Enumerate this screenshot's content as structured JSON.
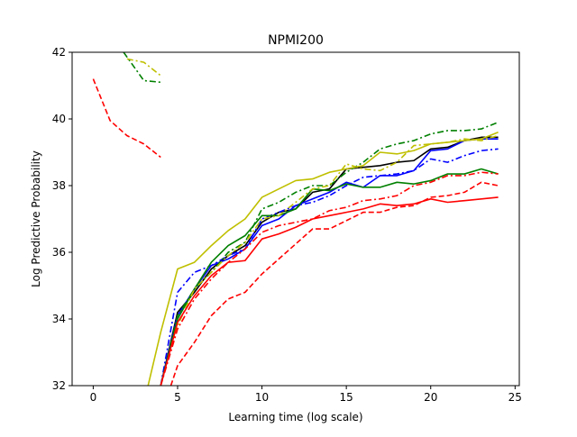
{
  "chart_data": {
    "type": "line",
    "title": "NPMI200",
    "xlabel": "Learning time (log scale)",
    "ylabel": "Log Predictive Probability",
    "xlim": [
      -1.25,
      25.25
    ],
    "ylim": [
      32,
      42
    ],
    "xticks": [
      0,
      5,
      10,
      15,
      20,
      25
    ],
    "yticks": [
      32,
      34,
      36,
      38,
      40,
      42
    ],
    "grid": false,
    "legend": "none",
    "series": [
      {
        "color": "#000000",
        "dash": "solid",
        "x": [
          4,
          5,
          6,
          7,
          8,
          9,
          10,
          11,
          12,
          13,
          14,
          15,
          16,
          17,
          18,
          19,
          20,
          21,
          22,
          23,
          24
        ],
        "y": [
          32.0,
          34.2,
          34.8,
          35.5,
          35.9,
          36.2,
          36.9,
          37.2,
          37.3,
          37.8,
          37.9,
          38.5,
          38.55,
          38.6,
          38.7,
          38.75,
          39.1,
          39.15,
          39.35,
          39.45,
          39.45
        ]
      },
      {
        "color": "#0000ff",
        "dash": "solid",
        "x": [
          4,
          5,
          6,
          7,
          8,
          9,
          10,
          11,
          12,
          13,
          14,
          15,
          16,
          17,
          18,
          19,
          20,
          21,
          22,
          23,
          24
        ],
        "y": [
          32.0,
          34.1,
          34.9,
          35.6,
          35.8,
          36.1,
          36.8,
          37.0,
          37.4,
          37.6,
          37.8,
          38.1,
          37.95,
          38.3,
          38.3,
          38.45,
          39.05,
          39.1,
          39.35,
          39.4,
          39.4
        ]
      },
      {
        "color": "#0000ff",
        "dash": "dashdot",
        "x": [
          4,
          5,
          6,
          7,
          8,
          9,
          10,
          11,
          12,
          13,
          14,
          15,
          16,
          17,
          18,
          19,
          20,
          21,
          22,
          23,
          24
        ],
        "y": [
          32.0,
          34.8,
          35.4,
          35.6,
          35.9,
          36.1,
          37.0,
          37.2,
          37.4,
          37.5,
          37.7,
          38.0,
          38.25,
          38.3,
          38.35,
          38.45,
          38.8,
          38.7,
          38.9,
          39.05,
          39.1
        ]
      },
      {
        "color": "#008000",
        "dash": "solid",
        "x": [
          4,
          5,
          6,
          7,
          8,
          9,
          10,
          11,
          12,
          13,
          14,
          15,
          16,
          17,
          18,
          19,
          20,
          21,
          22,
          23,
          24
        ],
        "y": [
          32.0,
          34.0,
          34.9,
          35.7,
          36.2,
          36.5,
          37.1,
          37.1,
          37.3,
          37.9,
          37.85,
          38.05,
          37.95,
          37.95,
          38.1,
          38.05,
          38.15,
          38.35,
          38.35,
          38.5,
          38.35
        ]
      },
      {
        "color": "#008000",
        "dash": "dashdot",
        "x": [
          1.8,
          3,
          4
        ],
        "y": [
          42.0,
          41.15,
          41.1
        ]
      },
      {
        "color": "#008000",
        "dash": "dashdot",
        "x": [
          4,
          5,
          6,
          7,
          8,
          9,
          10,
          11,
          12,
          13,
          14,
          15,
          16,
          17,
          18,
          19,
          20,
          21,
          22,
          23,
          24
        ],
        "y": [
          32.0,
          34.1,
          34.9,
          35.4,
          36.0,
          36.3,
          37.3,
          37.5,
          37.8,
          38.0,
          38.0,
          38.4,
          38.7,
          39.1,
          39.25,
          39.35,
          39.55,
          39.65,
          39.65,
          39.7,
          39.9
        ]
      },
      {
        "color": "#bfbf00",
        "dash": "solid",
        "x": [
          3.25,
          4,
          5,
          6,
          7,
          8,
          9,
          10,
          11,
          12,
          13,
          14,
          15,
          16,
          17,
          18,
          19,
          20,
          21,
          22,
          23,
          24
        ],
        "y": [
          32.0,
          33.6,
          35.5,
          35.7,
          36.2,
          36.65,
          37.0,
          37.65,
          37.9,
          38.15,
          38.2,
          38.4,
          38.5,
          38.6,
          39.0,
          38.95,
          39.05,
          39.25,
          39.3,
          39.35,
          39.4,
          39.6
        ]
      },
      {
        "color": "#bfbf00",
        "dash": "dashdot",
        "x": [
          2,
          3,
          4
        ],
        "y": [
          41.8,
          41.7,
          41.3
        ]
      },
      {
        "color": "#bfbf00",
        "dash": "dashdot",
        "x": [
          4,
          5,
          6,
          7,
          8,
          9,
          10,
          11,
          12,
          13,
          14,
          15,
          16,
          17,
          18,
          19,
          20,
          21,
          22,
          23,
          24
        ],
        "y": [
          32.0,
          33.8,
          34.9,
          35.4,
          35.9,
          36.3,
          37.0,
          37.1,
          37.5,
          37.9,
          38.0,
          38.65,
          38.5,
          38.45,
          38.7,
          39.2,
          39.25,
          39.3,
          39.4,
          39.35,
          39.5
        ]
      },
      {
        "color": "#ff0000",
        "dash": "solid",
        "x": [
          4,
          5,
          6,
          7,
          8,
          9,
          10,
          11,
          12,
          13,
          14,
          15,
          16,
          17,
          18,
          19,
          20,
          21,
          22,
          23,
          24
        ],
        "y": [
          32.0,
          33.9,
          34.7,
          35.3,
          35.7,
          35.75,
          36.4,
          36.55,
          36.75,
          37.0,
          37.1,
          37.2,
          37.3,
          37.45,
          37.4,
          37.45,
          37.6,
          37.5,
          37.55,
          37.6,
          37.65
        ]
      },
      {
        "color": "#ff0000",
        "dash": "dashed",
        "x": [
          0,
          1,
          2,
          3,
          4
        ],
        "y": [
          41.2,
          39.95,
          39.5,
          39.25,
          38.85
        ]
      },
      {
        "color": "#ff0000",
        "dash": "dashed",
        "x": [
          4.6,
          5,
          6,
          7,
          8,
          9,
          10,
          11,
          12,
          13,
          14,
          15,
          16,
          17,
          18,
          19,
          20,
          21,
          22,
          23,
          24
        ],
        "y": [
          32.0,
          32.6,
          33.3,
          34.1,
          34.6,
          34.8,
          35.35,
          35.8,
          36.25,
          36.7,
          36.7,
          36.95,
          37.2,
          37.2,
          37.35,
          37.4,
          37.65,
          37.7,
          37.8,
          38.1,
          38.0
        ]
      },
      {
        "color": "#ff0000",
        "dash": "dashdot",
        "x": [
          4,
          5,
          6,
          7,
          8,
          9,
          10,
          11,
          12,
          13,
          14,
          15,
          16,
          17,
          18,
          19,
          20,
          21,
          22,
          23,
          24
        ],
        "y": [
          32.0,
          33.7,
          34.6,
          35.2,
          35.7,
          36.1,
          36.6,
          36.8,
          36.9,
          37.0,
          37.25,
          37.35,
          37.55,
          37.6,
          37.7,
          38.0,
          38.1,
          38.3,
          38.3,
          38.4,
          38.35
        ]
      }
    ]
  }
}
